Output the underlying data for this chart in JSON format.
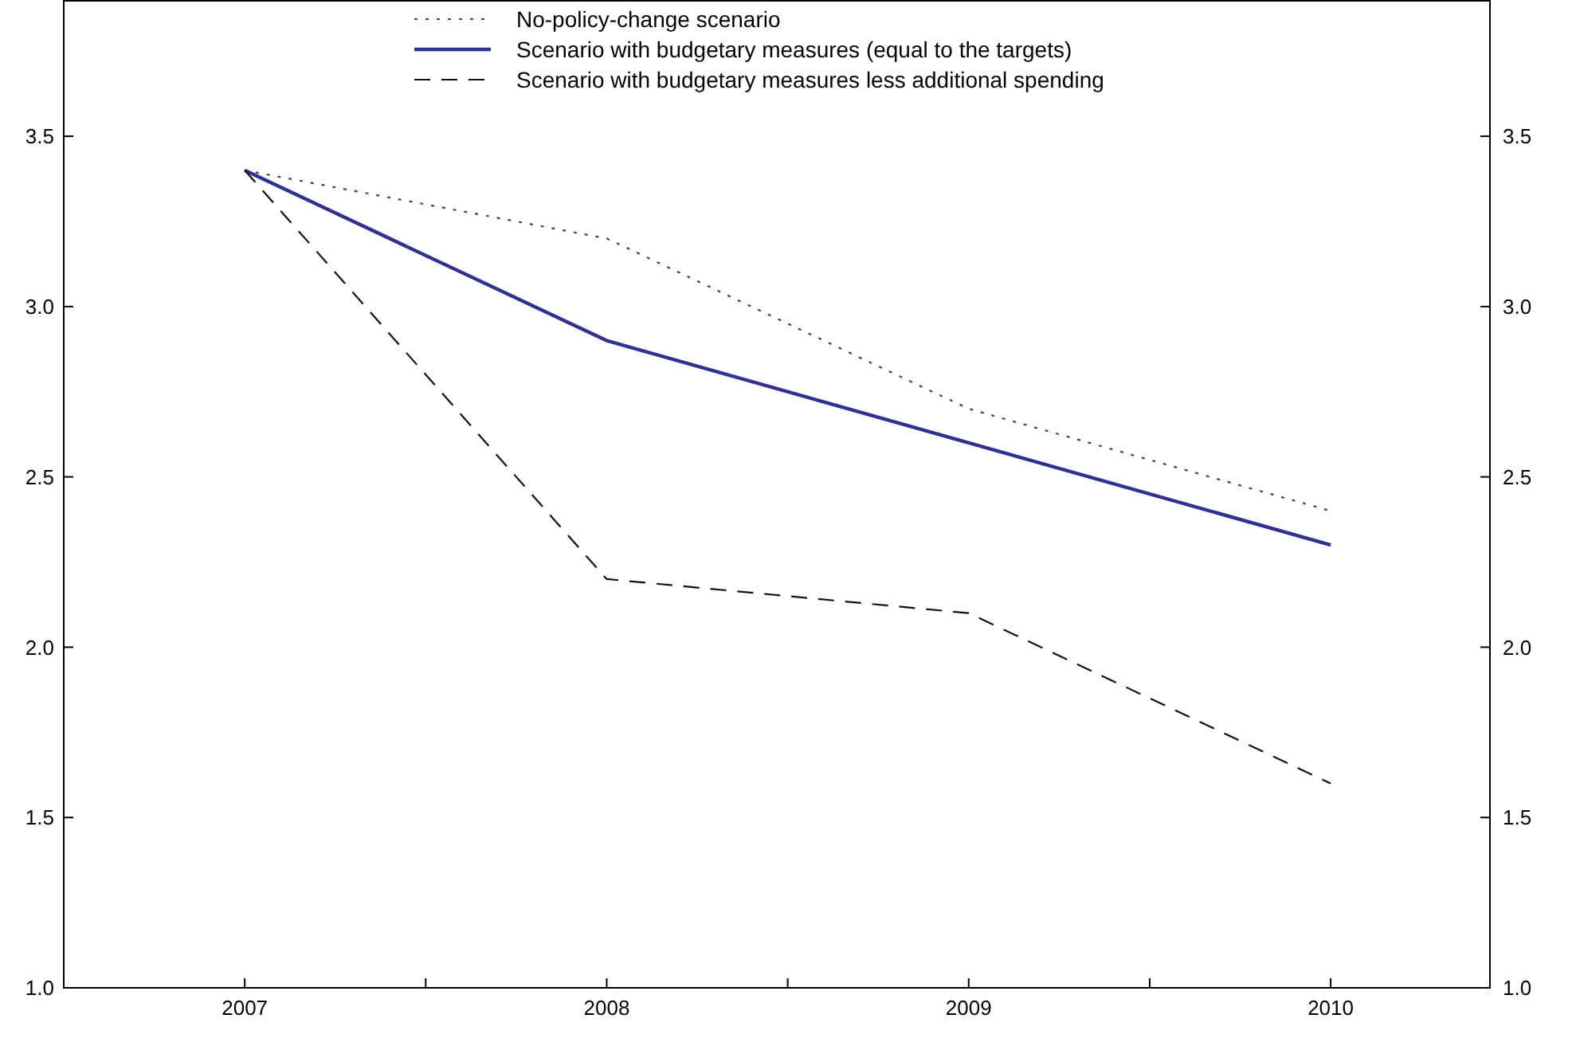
{
  "chart_data": {
    "type": "line",
    "x": [
      2007,
      2008,
      2009,
      2010
    ],
    "series": [
      {
        "name": "No-policy-change scenario",
        "color": "#444444",
        "values": [
          3.4,
          3.2,
          2.7,
          2.4
        ],
        "line_style": "dotted"
      },
      {
        "name": "Scenario with budgetary measures (equal to the targets)",
        "color": "#2e3192",
        "values": [
          3.4,
          2.9,
          2.6,
          2.3
        ],
        "line_style": "solid"
      },
      {
        "name": "Scenario with budgetary measures less additional spending",
        "color": "#111111",
        "values": [
          3.4,
          2.2,
          2.1,
          1.6
        ],
        "line_style": "dashed"
      }
    ],
    "xlim": [
      2006.5,
      2010.44
    ],
    "xticks": [
      2007,
      {
        "value": 2007.5,
        "label": null
      },
      2008,
      {
        "value": 2008.5,
        "label": null
      },
      2009,
      {
        "value": 2009.5,
        "label": null
      },
      2010
    ],
    "ylim": [
      1.0,
      3.9
    ],
    "yticks": [
      {
        "value": 1,
        "label": "1.0"
      },
      {
        "value": 1.5,
        "label": "1.5"
      },
      {
        "value": 2,
        "label": "2.0"
      },
      {
        "value": 2.5,
        "label": "2.5"
      },
      {
        "value": 3,
        "label": "3.0"
      },
      {
        "value": 3.5,
        "label": "3.5"
      }
    ],
    "y2lim": [
      1.0,
      3.9
    ],
    "y2ticks": [
      {
        "value": 1,
        "label": "1.0"
      },
      {
        "value": 1.5,
        "label": "1.5"
      },
      {
        "value": 2,
        "label": "2.0"
      },
      {
        "value": 2.5,
        "label": "2.5"
      },
      {
        "value": 3,
        "label": "3.0"
      },
      {
        "value": 3.5,
        "label": "3.5"
      }
    ],
    "legend": "top",
    "grid": false,
    "marker": "none"
  }
}
